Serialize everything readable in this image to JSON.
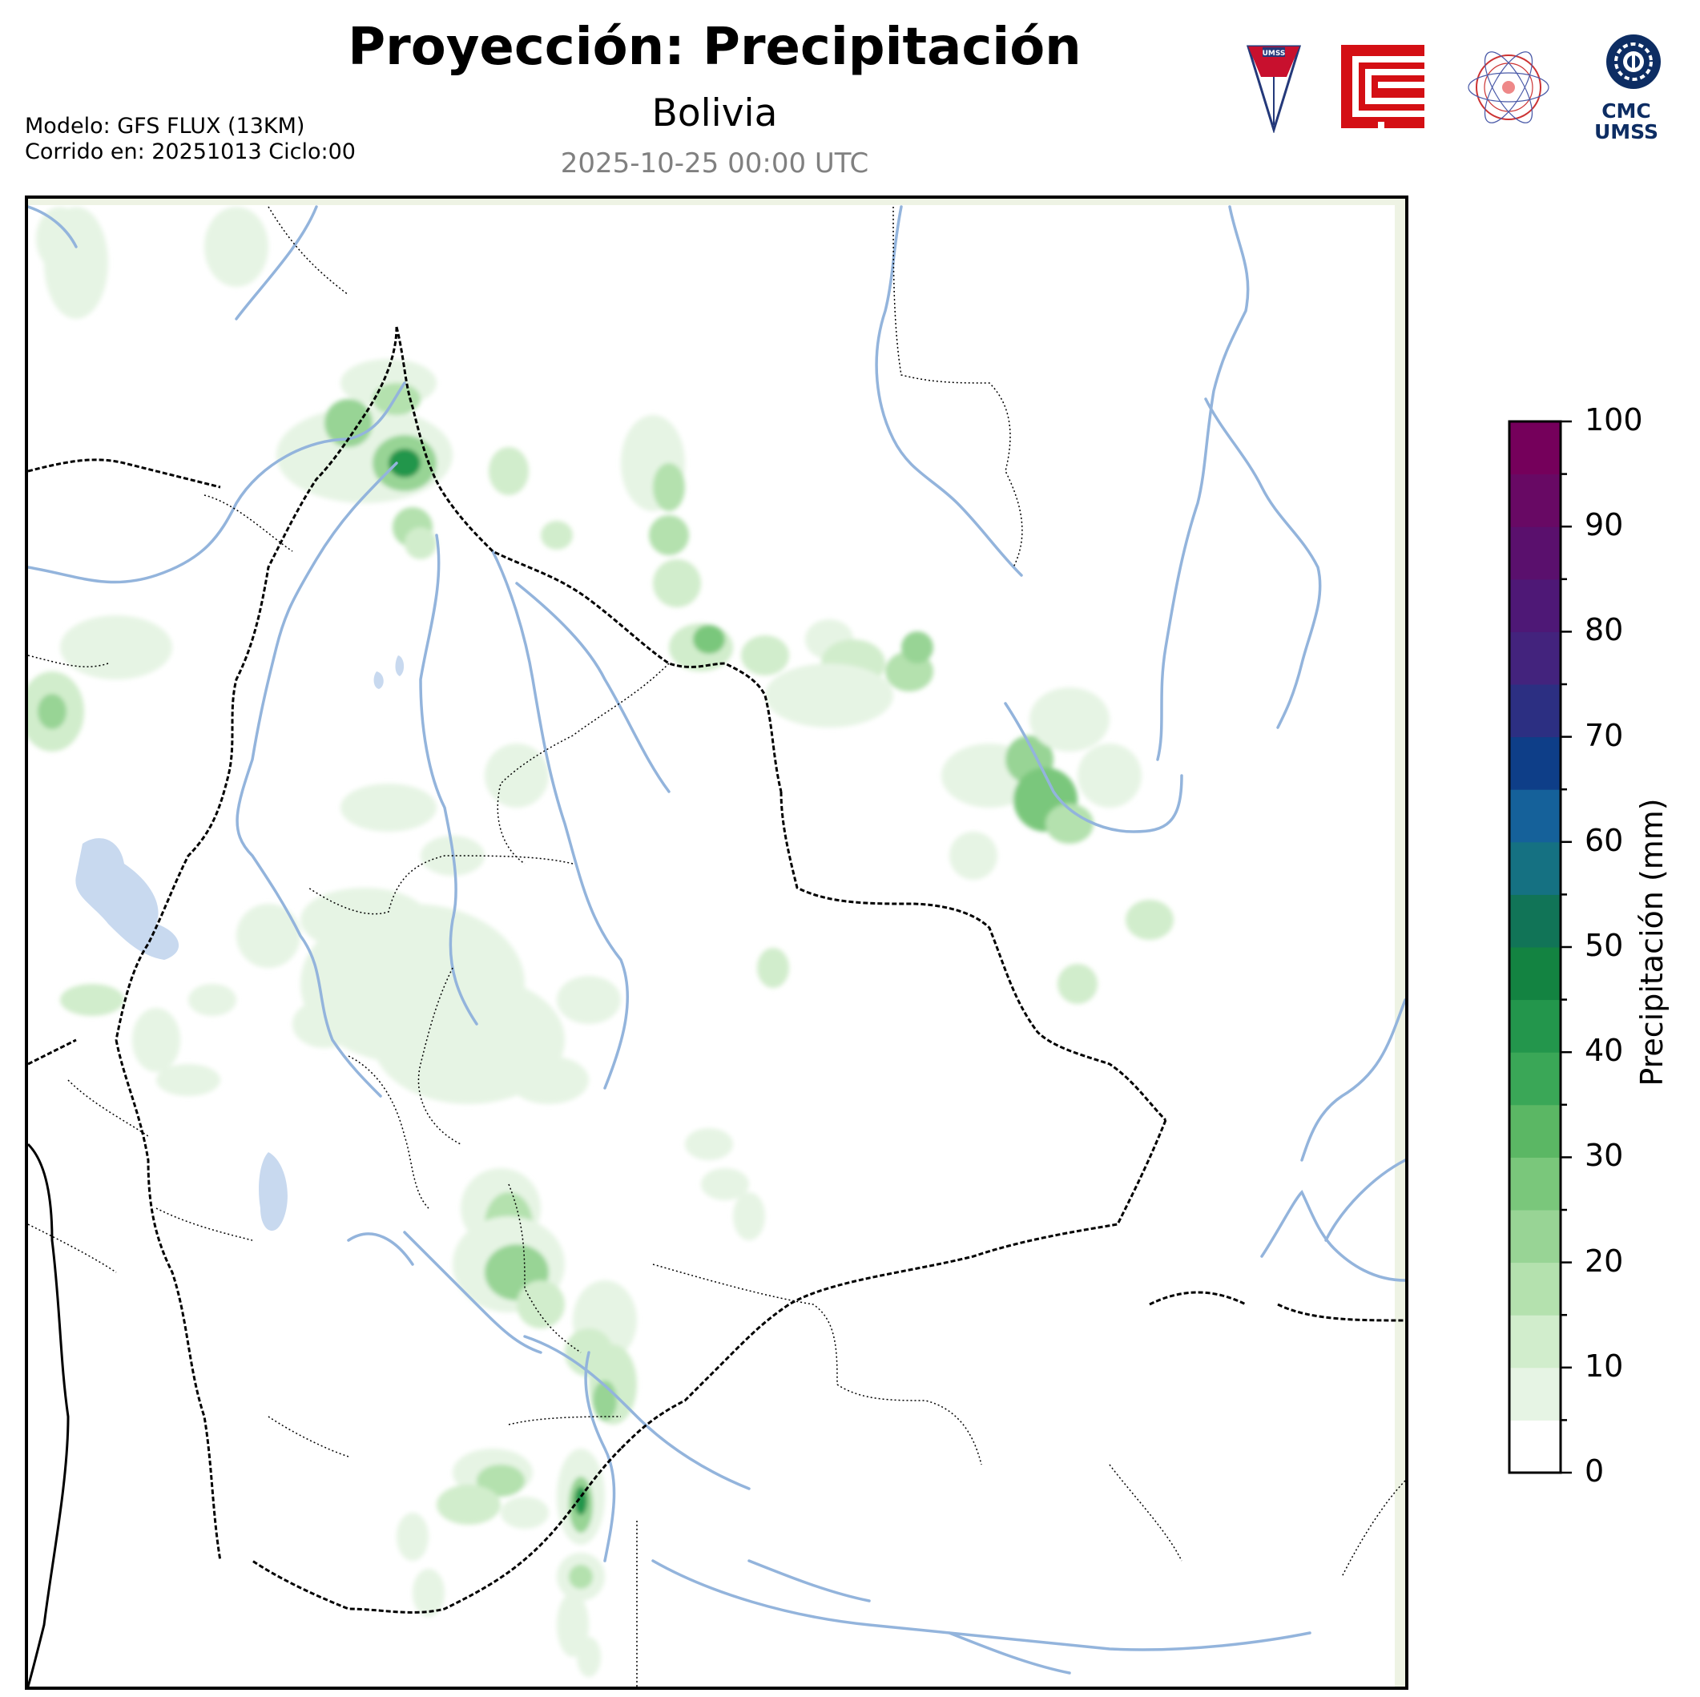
{
  "header": {
    "title": "Proyección: Precipitación",
    "subtitle": "Bolivia",
    "datetime": "2025-10-25 00:00 UTC",
    "model_line": "Modelo: GFS FLUX (13KM)",
    "run_line": "Corrido en: 20251013 Ciclo:00"
  },
  "logos": {
    "umss_text": "UMSS",
    "cmc_line1": "CMC",
    "cmc_line2": "UMSS",
    "red_logo_color": "#d40f14",
    "blue_logo_color": "#0d2d63"
  },
  "colors": {
    "river": "#93b4dc",
    "lake": "#c8d9ef",
    "border": "#000000",
    "ocean_edge": "#eef3e4"
  },
  "colorbar": {
    "label": "Precipitación (mm)",
    "ticks": [
      "0",
      "10",
      "20",
      "30",
      "40",
      "50",
      "60",
      "70",
      "80",
      "90",
      "100"
    ],
    "levels": [
      0,
      5,
      10,
      15,
      20,
      25,
      30,
      35,
      40,
      45,
      50,
      55,
      60,
      65,
      70,
      75,
      80,
      85,
      90,
      95,
      100
    ],
    "colors": [
      "#ffffff",
      "#e6f4e4",
      "#d1edcc",
      "#b4e1ae",
      "#98d495",
      "#7ac77b",
      "#5bb764",
      "#3aa757",
      "#23964c",
      "#138341",
      "#117457",
      "#157182",
      "#15619a",
      "#0e3e88",
      "#2c2f82",
      "#43237d",
      "#4e1876",
      "#5a106d",
      "#680964",
      "#75005b"
    ]
  }
}
